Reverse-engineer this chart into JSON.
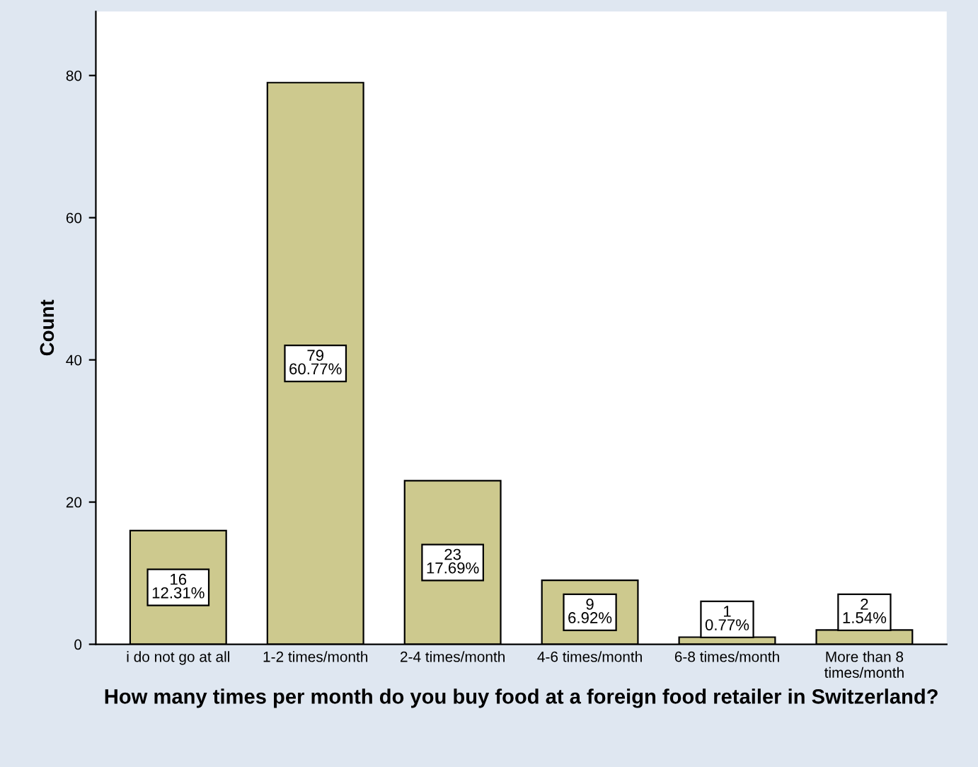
{
  "chart_data": {
    "type": "bar",
    "categories": [
      "i do not go at all",
      "1-2 times/month",
      "2-4 times/month",
      "4-6 times/month",
      "6-8 times/month",
      "More than 8\ntimes/month"
    ],
    "values": [
      16,
      79,
      23,
      9,
      1,
      2
    ],
    "value_labels": [
      "16\n12.31%",
      "79\n60.77%",
      "23\n17.69%",
      "9\n6.92%",
      "1\n0.77%",
      "2\n1.54%"
    ],
    "color": "#cdc98e",
    "xlabel": "How many times per month do you buy food at a foreign food retailer in Switzerland?",
    "ylabel": "Count",
    "ylim": [
      0,
      89
    ],
    "yticks": [
      0,
      20,
      40,
      60,
      80
    ],
    "grid": false,
    "legend": false
  }
}
